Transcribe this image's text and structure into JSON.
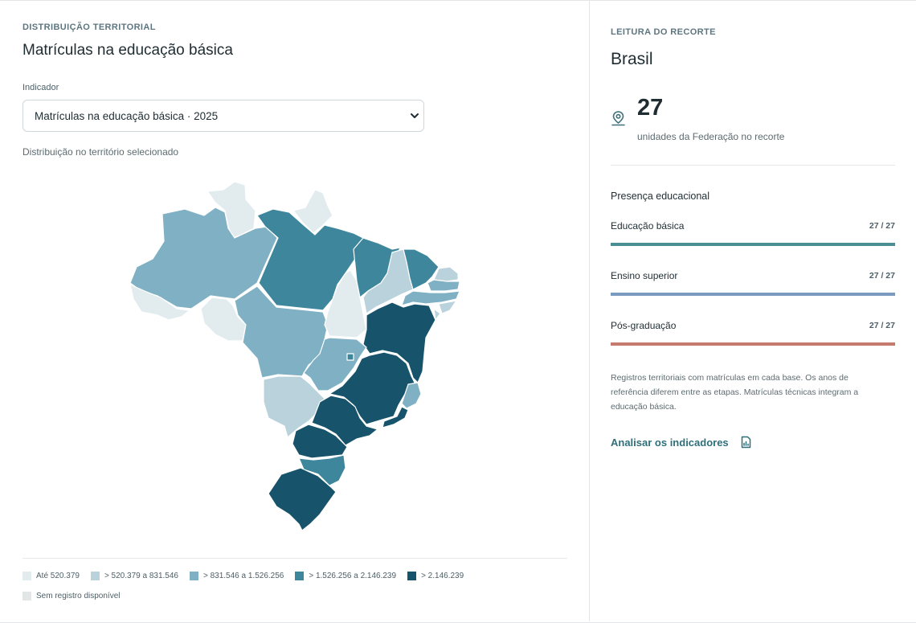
{
  "left": {
    "eyebrow": "DISTRIBUIÇÃO TERRITORIAL",
    "title": "Matrículas na educação básica",
    "indicator_label": "Indicador",
    "indicator_selected": "Matrículas na educação básica · 2025",
    "caption": "Distribuição no território selecionado"
  },
  "legend": {
    "items": [
      {
        "label": "Até 520.379",
        "color": "#e2ecef"
      },
      {
        "label": "> 520.379 a 831.546",
        "color": "#b9d2dc"
      },
      {
        "label": "> 831.546 a 1.526.256",
        "color": "#7fb0c3"
      },
      {
        "label": "> 1.526.256 a 2.146.239",
        "color": "#3e869c"
      },
      {
        "label": "> 2.146.239",
        "color": "#17536a"
      }
    ],
    "no_data_label": "Sem registro disponível",
    "no_data_color": "#e3e6e7"
  },
  "right": {
    "eyebrow": "LEITURA DO RECORTE",
    "title": "Brasil",
    "stat_value": "27",
    "stat_desc": "unidades da Federação no recorte",
    "stat_icon": "map-pin-icon",
    "section_title": "Presença educacional",
    "bars": [
      {
        "label": "Educação básica",
        "count": "27 / 27",
        "fraction": 1.0,
        "color": "#4a8f95"
      },
      {
        "label": "Ensino superior",
        "count": "27 / 27",
        "fraction": 1.0,
        "color": "#7a9bbf"
      },
      {
        "label": "Pós-graduação",
        "count": "27 / 27",
        "fraction": 1.0,
        "color": "#c47a6c"
      }
    ],
    "note": "Registros territoriais com matrículas em cada base. Os anos de referência diferem entre as etapas. Matrículas técnicas integram a educação básica.",
    "link_label": "Analisar os indicadores",
    "link_icon": "chart-document-icon"
  },
  "colors": {
    "accent": "#2f6f7a"
  }
}
